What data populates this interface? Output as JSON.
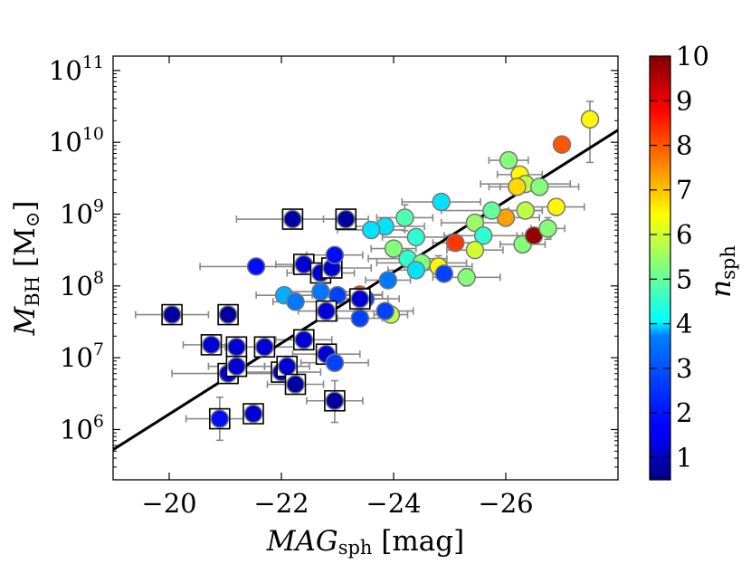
{
  "chart_data": {
    "type": "scatter",
    "title": "",
    "x_axis": {
      "label_italic": "MAG",
      "label_sub": "sph",
      "label_unit": " [mag]",
      "range": [
        -19,
        -28
      ],
      "inverted": true,
      "ticks": [
        -20,
        -22,
        -24,
        -26
      ],
      "tick_labels": [
        "−20",
        "−22",
        "−24",
        "−26"
      ]
    },
    "y_axis": {
      "label_italic": "M",
      "label_sub": "BH",
      "label_unit_open": " [M",
      "label_unit_sym": "⊙",
      "label_unit_close": "]",
      "scale": "log",
      "range_log10": [
        5.3,
        11.2
      ],
      "ticks_log10": [
        6,
        7,
        8,
        9,
        10,
        11
      ],
      "tick_base": "10",
      "tick_exponents": [
        "6",
        "7",
        "8",
        "9",
        "10",
        "11"
      ]
    },
    "colorbar": {
      "label_italic": "n",
      "label_sub": "sph",
      "range": [
        0.5,
        10
      ],
      "ticks": [
        1,
        2,
        3,
        4,
        5,
        6,
        7,
        8,
        9,
        10
      ],
      "tick_labels": [
        "1",
        "2",
        "3",
        "4",
        "5",
        "6",
        "7",
        "8",
        "9",
        "10"
      ],
      "colormap": "jet",
      "position": "right"
    },
    "fit_line": {
      "x": [
        -19,
        -28
      ],
      "log10_y": [
        5.72,
        10.17
      ],
      "color": "#000000"
    },
    "grid": false,
    "legend": "none",
    "marker_face_edge": "#777777",
    "errorbar_color": "#888888",
    "square_marker_edge": "#000000",
    "points": [
      {
        "x": 27.5,
        "y": 10.32,
        "n": 6.5,
        "xe": 0,
        "ye": [
          0.25,
          0.6
        ]
      },
      {
        "x": 27.0,
        "y": 9.97,
        "n": 8.0,
        "xe": 0,
        "ye": [
          0,
          0
        ]
      },
      {
        "x": 26.05,
        "y": 9.75,
        "n": 5.3,
        "xe": 0.35,
        "ye": [
          0,
          0
        ]
      },
      {
        "x": 26.25,
        "y": 9.55,
        "n": 6.5,
        "xe": 0.4,
        "ye": [
          0,
          0
        ]
      },
      {
        "x": 26.35,
        "y": 9.42,
        "n": 5.8,
        "xe": 0.8,
        "ye": [
          0,
          0
        ]
      },
      {
        "x": 26.2,
        "y": 9.38,
        "n": 6.8,
        "xe": 0.5,
        "ye": [
          0,
          0
        ]
      },
      {
        "x": 26.6,
        "y": 9.38,
        "n": 5.3,
        "xe": 0.7,
        "ye": [
          0,
          0
        ]
      },
      {
        "x": 26.35,
        "y": 9.05,
        "n": 5.8,
        "xe": 0.3,
        "ye": [
          0,
          0
        ]
      },
      {
        "x": 26.9,
        "y": 9.1,
        "n": 6.5,
        "xe": 0.5,
        "ye": [
          0,
          0
        ]
      },
      {
        "x": 26.0,
        "y": 8.95,
        "n": 7.3,
        "xe": 0.6,
        "ye": [
          0,
          0
        ]
      },
      {
        "x": 25.75,
        "y": 9.05,
        "n": 5.0,
        "xe": 0.9,
        "ye": [
          0,
          0
        ]
      },
      {
        "x": 25.45,
        "y": 8.88,
        "n": 5.5,
        "xe": 0.6,
        "ye": [
          0,
          0
        ]
      },
      {
        "x": 24.85,
        "y": 9.17,
        "n": 3.8,
        "xe": 0.7,
        "ye": [
          0,
          0
        ]
      },
      {
        "x": 24.2,
        "y": 8.95,
        "n": 4.8,
        "xe": 0.5,
        "ye": [
          0.18,
          0
        ]
      },
      {
        "x": 23.85,
        "y": 8.83,
        "n": 3.8,
        "xe": 0.7,
        "ye": [
          0,
          0
        ]
      },
      {
        "x": 23.6,
        "y": 8.78,
        "n": 3.8,
        "xe": 0.6,
        "ye": [
          0,
          0
        ]
      },
      {
        "x": 24.4,
        "y": 8.68,
        "n": 4.5,
        "xe": 0.6,
        "ye": [
          0,
          0
        ]
      },
      {
        "x": 24.0,
        "y": 8.52,
        "n": 5.3,
        "xe": 0.4,
        "ye": [
          0,
          0
        ]
      },
      {
        "x": 24.25,
        "y": 8.38,
        "n": 4.5,
        "xe": 0.7,
        "ye": [
          0,
          0
        ]
      },
      {
        "x": 24.5,
        "y": 8.32,
        "n": 5.3,
        "xe": 0.8,
        "ye": [
          0,
          0
        ]
      },
      {
        "x": 24.4,
        "y": 8.22,
        "n": 3.8,
        "xe": 0.5,
        "ye": [
          0,
          0
        ]
      },
      {
        "x": 24.8,
        "y": 8.27,
        "n": 6.5,
        "xe": 0.6,
        "ye": [
          0.15,
          0
        ]
      },
      {
        "x": 24.9,
        "y": 8.17,
        "n": 2.3,
        "xe": 0,
        "ye": [
          0,
          0
        ]
      },
      {
        "x": 25.6,
        "y": 8.7,
        "n": 4.5,
        "xe": 0.7,
        "ye": [
          0,
          0
        ]
      },
      {
        "x": 25.1,
        "y": 8.6,
        "n": 8.3,
        "xe": 0.4,
        "ye": [
          0,
          0
        ]
      },
      {
        "x": 25.45,
        "y": 8.5,
        "n": 6.0,
        "xe": 0.5,
        "ye": [
          0,
          0
        ]
      },
      {
        "x": 25.3,
        "y": 8.12,
        "n": 5.3,
        "xe": 0.6,
        "ye": [
          0.12,
          0
        ]
      },
      {
        "x": 26.3,
        "y": 8.58,
        "n": 5.3,
        "xe": 0.4,
        "ye": [
          0,
          0
        ]
      },
      {
        "x": 26.5,
        "y": 8.7,
        "n": 9.8,
        "xe": 0.3,
        "ye": [
          0,
          0
        ]
      },
      {
        "x": 26.75,
        "y": 8.8,
        "n": 5.3,
        "xe": 0.3,
        "ye": [
          0.15,
          0
        ]
      },
      {
        "x": 23.4,
        "y": 7.88,
        "n": 8.3,
        "xe": 0.4,
        "ye": [
          0,
          0
        ]
      },
      {
        "x": 23.95,
        "y": 7.6,
        "n": 5.8,
        "xe": 0.3,
        "ye": [
          0,
          0
        ]
      },
      {
        "x": 23.9,
        "y": 8.08,
        "n": 2.8,
        "xe": 0.4,
        "ye": [
          0,
          0
        ]
      },
      {
        "x": 23.5,
        "y": 7.82,
        "n": 2.3,
        "xe": 0.6,
        "ye": [
          0,
          0
        ]
      },
      {
        "x": 23.85,
        "y": 7.65,
        "n": 2.3,
        "xe": 0.5,
        "ye": [
          0,
          0
        ]
      },
      {
        "x": 23.4,
        "y": 7.55,
        "n": 2.3,
        "xe": 0.4,
        "ye": [
          0,
          0
        ]
      },
      {
        "x": 22.2,
        "y": 8.93,
        "n": 0.8,
        "xe": 1.0,
        "ye": [
          0,
          0
        ],
        "sq": true
      },
      {
        "x": 23.15,
        "y": 8.93,
        "n": 0.8,
        "xe": 0.4,
        "ye": [
          0,
          0
        ],
        "sq": true
      },
      {
        "x": 21.55,
        "y": 8.27,
        "n": 1.8,
        "xe": 1.0,
        "ye": [
          0,
          0
        ]
      },
      {
        "x": 22.4,
        "y": 8.3,
        "n": 1.3,
        "xe": 0.5,
        "ye": [
          0,
          0
        ],
        "sq": true
      },
      {
        "x": 22.7,
        "y": 8.18,
        "n": 1.3,
        "xe": 0.6,
        "ye": [
          0,
          0
        ],
        "sq": true
      },
      {
        "x": 22.9,
        "y": 8.25,
        "n": 1.3,
        "xe": 0.7,
        "ye": [
          0,
          0
        ],
        "sq": true
      },
      {
        "x": 22.95,
        "y": 8.43,
        "n": 1.8,
        "xe": 0.5,
        "ye": [
          0,
          0
        ]
      },
      {
        "x": 22.05,
        "y": 7.87,
        "n": 3.3,
        "xe": 0.5,
        "ye": [
          0,
          0
        ]
      },
      {
        "x": 22.25,
        "y": 7.78,
        "n": 2.8,
        "xe": 0.4,
        "ye": [
          0,
          0
        ]
      },
      {
        "x": 22.7,
        "y": 7.92,
        "n": 2.8,
        "xe": 0.6,
        "ye": [
          0,
          0
        ]
      },
      {
        "x": 23.0,
        "y": 7.87,
        "n": 2.3,
        "xe": 0.8,
        "ye": [
          0,
          0
        ]
      },
      {
        "x": 22.8,
        "y": 7.65,
        "n": 1.3,
        "xe": 0.5,
        "ye": [
          0,
          0
        ],
        "sq": true
      },
      {
        "x": 23.4,
        "y": 7.82,
        "n": 1.3,
        "xe": 0.5,
        "ye": [
          0,
          0
        ],
        "sq": true
      },
      {
        "x": 20.05,
        "y": 7.6,
        "n": 0.8,
        "xe": 0.65,
        "ye": [
          0,
          0
        ],
        "sq": true
      },
      {
        "x": 21.05,
        "y": 7.6,
        "n": 0.8,
        "xe": 0,
        "ye": [
          0,
          0
        ],
        "sq": true
      },
      {
        "x": 20.75,
        "y": 7.18,
        "n": 1.3,
        "xe": 0.5,
        "ye": [
          0.13,
          0
        ],
        "sq": true
      },
      {
        "x": 21.2,
        "y": 7.15,
        "n": 1.3,
        "xe": 0.5,
        "ye": [
          0,
          0
        ],
        "sq": true
      },
      {
        "x": 21.7,
        "y": 7.15,
        "n": 1.3,
        "xe": 0.7,
        "ye": [
          0,
          0
        ],
        "sq": true
      },
      {
        "x": 22.4,
        "y": 7.25,
        "n": 1.3,
        "xe": 0.5,
        "ye": [
          0,
          0
        ],
        "sq": true
      },
      {
        "x": 22.8,
        "y": 7.05,
        "n": 1.3,
        "xe": 0.6,
        "ye": [
          0,
          0
        ],
        "sq": true
      },
      {
        "x": 22.95,
        "y": 6.93,
        "n": 2.3,
        "xe": 0.6,
        "ye": [
          0,
          0
        ]
      },
      {
        "x": 21.05,
        "y": 6.78,
        "n": 1.3,
        "xe": 1.0,
        "ye": [
          0,
          0
        ],
        "sq": true
      },
      {
        "x": 21.2,
        "y": 6.88,
        "n": 1.3,
        "xe": 0.5,
        "ye": [
          0,
          0
        ],
        "sq": true
      },
      {
        "x": 22.0,
        "y": 6.8,
        "n": 1.3,
        "xe": 0.7,
        "ye": [
          0,
          0
        ],
        "sq": true
      },
      {
        "x": 22.1,
        "y": 6.88,
        "n": 1.3,
        "xe": 0.4,
        "ye": [
          0,
          0
        ],
        "sq": true
      },
      {
        "x": 22.25,
        "y": 6.63,
        "n": 0.8,
        "xe": 0.5,
        "ye": [
          0,
          0
        ],
        "sq": true
      },
      {
        "x": 22.95,
        "y": 6.4,
        "n": 0.8,
        "xe": 0.5,
        "ye": [
          0.28,
          0.3
        ],
        "sq": true
      },
      {
        "x": 20.9,
        "y": 6.15,
        "n": 1.8,
        "xe": 0.6,
        "ye": [
          0.3,
          0
        ],
        "sq": true
      },
      {
        "x": 21.5,
        "y": 6.22,
        "n": 1.3,
        "xe": 0,
        "ye": [
          0,
          0
        ],
        "sq": true
      }
    ]
  }
}
